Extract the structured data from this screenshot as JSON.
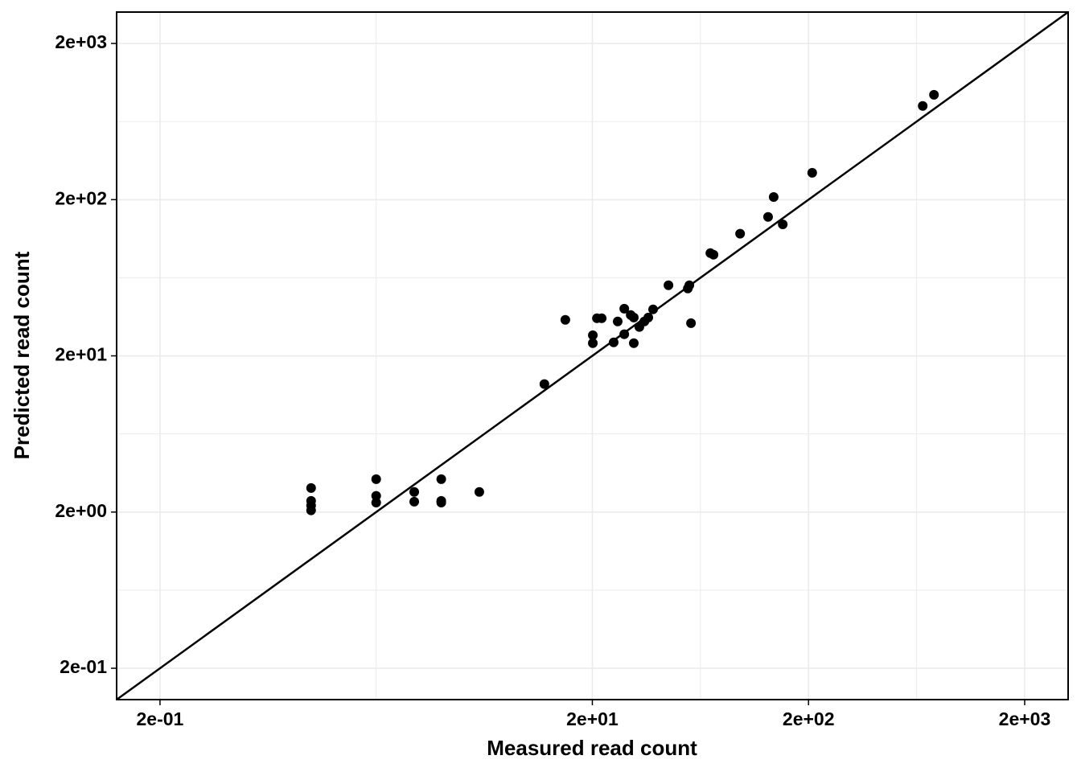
{
  "chart_data": {
    "type": "scatter",
    "xlabel": "Measured read count",
    "ylabel": "Predicted read count",
    "x": [
      1,
      1,
      1,
      1,
      2,
      2,
      2,
      3,
      3,
      4,
      4,
      4,
      6,
      12,
      15,
      20.1,
      20.1,
      21,
      22.1,
      25.1,
      26.2,
      28.1,
      28.1,
      30.1,
      31.1,
      31.1,
      33,
      34.8,
      36.3,
      38.2,
      45,
      55.3,
      56.2,
      57.2,
      70.3,
      72.7,
      96.5,
      130,
      138,
      152,
      208,
      675,
      761
    ],
    "values": [
      2.85,
      2.36,
      2.2,
      2.05,
      3.25,
      2.54,
      2.3,
      2.69,
      2.33,
      3.25,
      2.36,
      2.3,
      2.69,
      13.2,
      34,
      27.1,
      24.1,
      34.8,
      34.8,
      24.4,
      33.2,
      40.1,
      27.5,
      36.5,
      35.2,
      24.1,
      30.6,
      33.2,
      35.2,
      39.7,
      56.6,
      54,
      56.6,
      32.4,
      90.9,
      88.8,
      121,
      155,
      208,
      139,
      297,
      796,
      939
    ],
    "color": "#000000",
    "xlim": [
      0.126,
      3177
    ],
    "ylim": [
      0.126,
      3177
    ],
    "xticks": [
      {
        "value": 0.2,
        "label": "2e-01"
      },
      {
        "value": 20,
        "label": "2e+01"
      },
      {
        "value": 200,
        "label": "2e+02"
      },
      {
        "value": 2000,
        "label": "2e+03"
      }
    ],
    "yticks": [
      {
        "value": 0.2,
        "label": "2e-01"
      },
      {
        "value": 2,
        "label": "2e+00"
      },
      {
        "value": 20,
        "label": "2e+01"
      },
      {
        "value": 200,
        "label": "2e+02"
      },
      {
        "value": 2000,
        "label": "2e+03"
      }
    ],
    "xscale": "log",
    "yscale": "log",
    "grid": true,
    "identity_line": true
  }
}
